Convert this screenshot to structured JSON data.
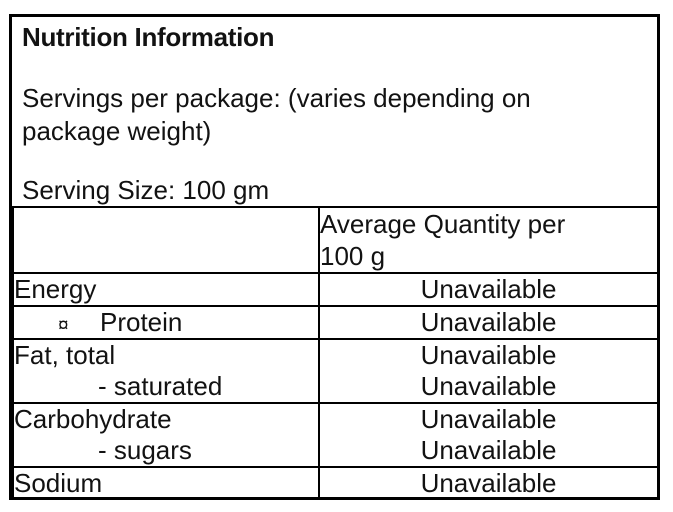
{
  "label": {
    "title": "Nutrition Information",
    "servings_line1": "Servings per package: (varies depending on",
    "servings_line2": "package weight)",
    "serving_size": "Serving Size: 100 gm"
  },
  "table": {
    "header": {
      "item_column": "",
      "quantity_line1": "Average Quantity per",
      "quantity_line2": "100 g"
    },
    "rows": [
      {
        "label": "Energy",
        "value": "Unavailable"
      },
      {
        "bullet": "¤",
        "label": "Protein",
        "value": "Unavailable"
      },
      {
        "label": "Fat, total",
        "sublabel": "- saturated",
        "value": "Unavailable",
        "subvalue": "Unavailable"
      },
      {
        "label": "Carbohydrate",
        "sublabel": "- sugars",
        "value": "Unavailable",
        "subvalue": "Unavailable"
      },
      {
        "label": "Sodium",
        "value": "Unavailable"
      }
    ]
  },
  "colors": {
    "border": "#000000",
    "text": "#121212",
    "background": "#ffffff"
  }
}
